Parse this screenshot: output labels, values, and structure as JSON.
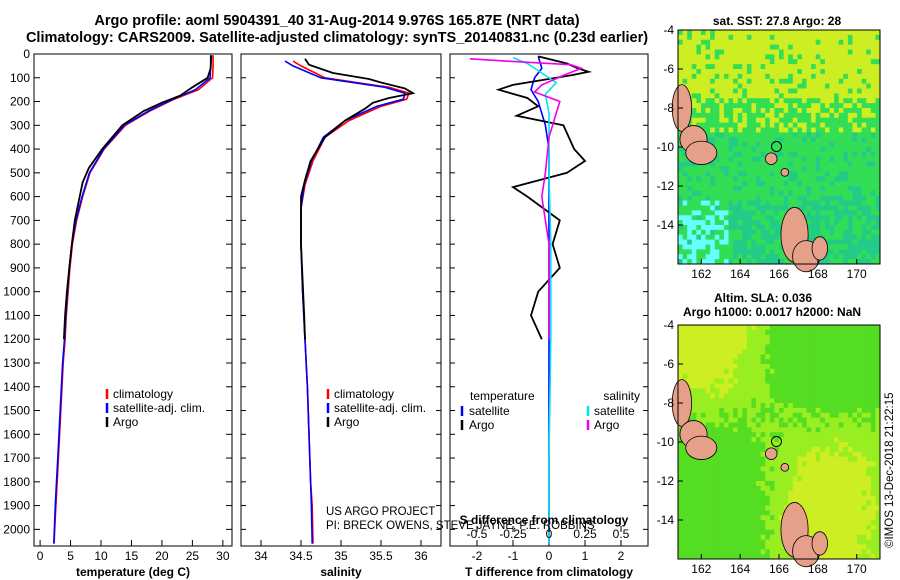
{
  "figure": {
    "title_line1": "Argo profile: aoml 5904391_40 31-Aug-2014 9.976S 165.87E (NRT data)",
    "title_line2": "Climatology: CARS2009. Satellite-adjusted climatology: synTS_20140831.nc (0.23d earlier)",
    "credit_line1": "US ARGO PROJECT",
    "credit_line2": "PI: BRECK OWENS, STEVE JAYNE, P.E. ROBBINS",
    "imos_stamp": "©IMOS 13-Dec-2018 21:22:15",
    "colors": {
      "climatology": "#ff0000",
      "satellite": "#0000ff",
      "argo": "#000000",
      "sat_salinity": "#00e5ee",
      "argo_salinity": "#ee00ee"
    }
  },
  "chart_data": [
    {
      "id": "temperature",
      "type": "line",
      "xlabel": "temperature (deg C)",
      "ylabel": "",
      "xlim": [
        -1,
        31.5
      ],
      "ylim": [
        2070,
        0
      ],
      "x_ticks": [
        "0",
        "5",
        "10",
        "15",
        "20",
        "25",
        "30"
      ],
      "x_tick_values": [
        0,
        5,
        10,
        15,
        20,
        25,
        30
      ],
      "y_ticks": [
        "0",
        "100",
        "200",
        "300",
        "400",
        "500",
        "600",
        "700",
        "800",
        "900",
        "1000",
        "1100",
        "1200",
        "1300",
        "1400",
        "1500",
        "1600",
        "1700",
        "1800",
        "1900",
        "2000"
      ],
      "y_tick_values": [
        0,
        100,
        200,
        300,
        400,
        500,
        600,
        700,
        800,
        900,
        1000,
        1100,
        1200,
        1300,
        1400,
        1500,
        1600,
        1700,
        1800,
        1900,
        2000
      ],
      "legend": [
        "climatology",
        "satellite-adj. clim.",
        "Argo"
      ],
      "series": [
        {
          "name": "climatology",
          "color": "#ff0000",
          "points": [
            [
              28.4,
              5
            ],
            [
              28.4,
              50
            ],
            [
              28.3,
              100
            ],
            [
              26,
              150
            ],
            [
              22,
              190
            ],
            [
              18,
              240
            ],
            [
              14,
              300
            ],
            [
              10.5,
              400
            ],
            [
              8.2,
              500
            ],
            [
              7,
              600
            ],
            [
              6,
              700
            ],
            [
              5.3,
              800
            ],
            [
              4.9,
              900
            ],
            [
              4.6,
              1000
            ],
            [
              4.3,
              1100
            ],
            [
              4.1,
              1200
            ],
            [
              3.8,
              1300
            ],
            [
              3.6,
              1400
            ],
            [
              3.4,
              1500
            ],
            [
              3.2,
              1600
            ],
            [
              3.0,
              1700
            ],
            [
              2.8,
              1800
            ],
            [
              2.6,
              1900
            ],
            [
              2.4,
              2000
            ],
            [
              2.3,
              2060
            ]
          ]
        },
        {
          "name": "satellite-adj. clim.",
          "color": "#0000ff",
          "points": [
            [
              28.0,
              5
            ],
            [
              28.0,
              50
            ],
            [
              27.9,
              100
            ],
            [
              25.5,
              150
            ],
            [
              21.8,
              190
            ],
            [
              17.8,
              240
            ],
            [
              13.8,
              300
            ],
            [
              10.4,
              400
            ],
            [
              8.1,
              500
            ],
            [
              6.9,
              600
            ],
            [
              5.9,
              700
            ],
            [
              5.2,
              800
            ],
            [
              4.8,
              900
            ],
            [
              4.5,
              1000
            ],
            [
              4.2,
              1100
            ],
            [
              4.0,
              1200
            ],
            [
              3.7,
              1300
            ],
            [
              3.5,
              1400
            ],
            [
              3.3,
              1500
            ],
            [
              3.1,
              1600
            ],
            [
              2.9,
              1700
            ],
            [
              2.7,
              1800
            ],
            [
              2.5,
              1900
            ],
            [
              2.35,
              2000
            ],
            [
              2.25,
              2060
            ]
          ]
        },
        {
          "name": "Argo",
          "color": "#000000",
          "points": [
            [
              28.1,
              5
            ],
            [
              28.0,
              60
            ],
            [
              27.5,
              100
            ],
            [
              25.0,
              140
            ],
            [
              23.0,
              175
            ],
            [
              20.0,
              205
            ],
            [
              17.0,
              240
            ],
            [
              13.5,
              300
            ],
            [
              10.2,
              400
            ],
            [
              8.0,
              480
            ],
            [
              7.0,
              540
            ],
            [
              6.5,
              600
            ],
            [
              5.7,
              700
            ],
            [
              5.3,
              780
            ],
            [
              4.8,
              900
            ],
            [
              4.4,
              1000
            ],
            [
              4.1,
              1100
            ],
            [
              3.9,
              1200
            ]
          ]
        }
      ]
    },
    {
      "id": "salinity",
      "type": "line",
      "xlabel": "salinity",
      "xlim": [
        33.75,
        36.25
      ],
      "ylim": [
        2070,
        0
      ],
      "x_ticks": [
        "34",
        "34.5",
        "35",
        "35.5",
        "36"
      ],
      "x_tick_values": [
        34,
        34.5,
        35,
        35.5,
        36
      ],
      "legend": [
        "climatology",
        "satellite-adj. clim.",
        "Argo"
      ],
      "series": [
        {
          "name": "climatology",
          "color": "#ff0000",
          "points": [
            [
              34.4,
              30
            ],
            [
              34.5,
              50
            ],
            [
              34.8,
              100
            ],
            [
              35.6,
              140
            ],
            [
              35.85,
              165
            ],
            [
              35.82,
              190
            ],
            [
              35.5,
              220
            ],
            [
              35.1,
              280
            ],
            [
              34.8,
              350
            ],
            [
              34.65,
              450
            ],
            [
              34.55,
              550
            ],
            [
              34.5,
              650
            ],
            [
              34.5,
              800
            ],
            [
              34.52,
              1000
            ],
            [
              34.55,
              1200
            ],
            [
              34.58,
              1400
            ],
            [
              34.6,
              1600
            ],
            [
              34.62,
              1800
            ],
            [
              34.64,
              1900
            ],
            [
              34.65,
              2060
            ]
          ]
        },
        {
          "name": "satellite-adj. clim.",
          "color": "#0000ff",
          "points": [
            [
              34.3,
              30
            ],
            [
              34.4,
              50
            ],
            [
              34.75,
              100
            ],
            [
              35.55,
              140
            ],
            [
              35.8,
              165
            ],
            [
              35.78,
              190
            ],
            [
              35.45,
              220
            ],
            [
              35.05,
              280
            ],
            [
              34.78,
              350
            ],
            [
              34.63,
              450
            ],
            [
              34.54,
              550
            ],
            [
              34.5,
              650
            ],
            [
              34.5,
              800
            ],
            [
              34.52,
              1000
            ],
            [
              34.55,
              1200
            ],
            [
              34.58,
              1400
            ],
            [
              34.6,
              1600
            ],
            [
              34.62,
              1800
            ],
            [
              34.63,
              1900
            ],
            [
              34.64,
              2060
            ]
          ]
        },
        {
          "name": "Argo",
          "color": "#000000",
          "points": [
            [
              34.55,
              20
            ],
            [
              34.6,
              45
            ],
            [
              34.9,
              80
            ],
            [
              35.35,
              105
            ],
            [
              35.5,
              120
            ],
            [
              35.8,
              145
            ],
            [
              35.9,
              165
            ],
            [
              35.6,
              185
            ],
            [
              35.4,
              205
            ],
            [
              35.3,
              230
            ],
            [
              35.05,
              280
            ],
            [
              34.8,
              350
            ],
            [
              34.62,
              450
            ],
            [
              34.55,
              530
            ],
            [
              34.5,
              600
            ],
            [
              34.5,
              700
            ],
            [
              34.5,
              800
            ],
            [
              34.52,
              950
            ],
            [
              34.54,
              1100
            ],
            [
              34.55,
              1200
            ]
          ]
        }
      ]
    },
    {
      "id": "difference",
      "type": "line",
      "xlabel": "T difference from climatology",
      "xlabel_top": "S difference from climatology",
      "xlim": [
        -2.75,
        2.75
      ],
      "ylim": [
        2070,
        0
      ],
      "x_ticks": [
        "-2",
        "-1",
        "0",
        "1",
        "2"
      ],
      "x_tick_values": [
        -2,
        -1,
        0,
        1,
        2
      ],
      "s_ticks": [
        "-0.5",
        "-0.25",
        "0",
        "0.25",
        "0.5"
      ],
      "s_tick_values": [
        -2,
        -1,
        0,
        1,
        2
      ],
      "legend_left_title": "temperature",
      "legend_right_title": "salinity",
      "legend_left": [
        "satellite",
        "Argo"
      ],
      "legend_right": [
        "satellite",
        "Argo"
      ],
      "series": [
        {
          "name": "T satellite",
          "color": "#0000ff",
          "points": [
            [
              -0.3,
              10
            ],
            [
              -0.2,
              60
            ],
            [
              -0.4,
              100
            ],
            [
              -0.5,
              150
            ],
            [
              -0.3,
              200
            ],
            [
              -0.1,
              300
            ],
            [
              0,
              400
            ],
            [
              0,
              600
            ],
            [
              0,
              1000
            ],
            [
              0,
              1500
            ],
            [
              0,
              2060
            ]
          ]
        },
        {
          "name": "T Argo",
          "color": "#000000",
          "points": [
            [
              -0.3,
              10
            ],
            [
              0.5,
              40
            ],
            [
              0.8,
              60
            ],
            [
              1.1,
              75
            ],
            [
              0.6,
              90
            ],
            [
              -1.0,
              130
            ],
            [
              -1.4,
              150
            ],
            [
              -0.6,
              185
            ],
            [
              -0.3,
              220
            ],
            [
              -0.9,
              260
            ],
            [
              0.4,
              300
            ],
            [
              0.7,
              400
            ],
            [
              1.0,
              450
            ],
            [
              0.5,
              500
            ],
            [
              -1.0,
              560
            ],
            [
              -0.6,
              600
            ],
            [
              0.3,
              700
            ],
            [
              0.1,
              800
            ],
            [
              0.3,
              900
            ],
            [
              -0.3,
              1000
            ],
            [
              -0.5,
              1100
            ],
            [
              -0.2,
              1200
            ]
          ]
        },
        {
          "name": "S satellite",
          "color": "#00e5ee",
          "points": [
            [
              -1.0,
              15
            ],
            [
              -0.6,
              40
            ],
            [
              -0.2,
              80
            ],
            [
              0.2,
              120
            ],
            [
              -0.1,
              170
            ],
            [
              0,
              250
            ],
            [
              0,
              500
            ],
            [
              0.05,
              800
            ],
            [
              0.05,
              1200
            ],
            [
              0,
              1700
            ],
            [
              0,
              2060
            ]
          ]
        },
        {
          "name": "S Argo",
          "color": "#ee00ee",
          "points": [
            [
              -2.2,
              20
            ],
            [
              -1.2,
              30
            ],
            [
              0.6,
              45
            ],
            [
              0.9,
              60
            ],
            [
              0.4,
              90
            ],
            [
              -0.2,
              130
            ],
            [
              -0.4,
              160
            ],
            [
              0.3,
              200
            ],
            [
              0.2,
              250
            ],
            [
              0,
              350
            ],
            [
              -0.1,
              500
            ],
            [
              -0.2,
              600
            ],
            [
              0,
              800
            ],
            [
              0,
              1000
            ],
            [
              0,
              1200
            ]
          ]
        }
      ]
    },
    {
      "id": "sst_map",
      "type": "heatmap",
      "title": "sat. SST: 27.8 Argo: 28",
      "x_ticks": [
        "162",
        "164",
        "166",
        "168",
        "170"
      ],
      "x_tick_values": [
        162,
        164,
        166,
        168,
        170
      ],
      "y_ticks": [
        "-4",
        "-6",
        "-8",
        "-10",
        "-12",
        "-14"
      ],
      "y_tick_values": [
        -4,
        -6,
        -8,
        -10,
        -12,
        -14
      ],
      "xlim": [
        160.8,
        171.2
      ],
      "ylim": [
        -16,
        -4
      ],
      "argo_position": [
        165.87,
        -9.976
      ],
      "colors": {
        "warm": "#ccee22",
        "mid": "#33dd55",
        "cool": "#22cc88",
        "cold": "#66ffff"
      }
    },
    {
      "id": "sla_map",
      "type": "heatmap",
      "title_line1": "Altim. SLA: 0.036",
      "title_line2": "Argo h1000: 0.0017 h2000: NaN",
      "x_ticks": [
        "162",
        "164",
        "166",
        "168",
        "170"
      ],
      "x_tick_values": [
        162,
        164,
        166,
        168,
        170
      ],
      "y_ticks": [
        "-4",
        "-6",
        "-8",
        "-10",
        "-12",
        "-14"
      ],
      "y_tick_values": [
        -4,
        -6,
        -8,
        -10,
        -12,
        -14
      ],
      "xlim": [
        160.8,
        171.2
      ],
      "ylim": [
        -16,
        -4
      ],
      "argo_position": [
        165.87,
        -9.976
      ],
      "colors": {
        "base": "#55dd22",
        "light": "#99ee22",
        "yellow": "#ccee22"
      }
    }
  ]
}
